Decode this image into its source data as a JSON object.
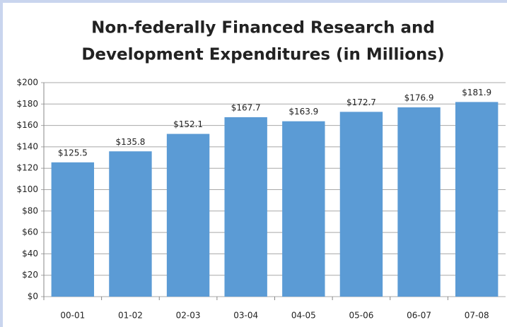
{
  "chart_data": {
    "type": "bar",
    "title": [
      "Non-federally Financed Research and",
      "Development Expenditures (in Millions)"
    ],
    "categories": [
      "00-01",
      "01-02",
      "02-03",
      "03-04",
      "04-05",
      "05-06",
      "06-07",
      "07-08"
    ],
    "values": [
      125.5,
      135.8,
      152.1,
      167.7,
      163.9,
      172.7,
      176.9,
      181.9
    ],
    "value_labels": [
      "$125.5",
      "$135.8",
      "$152.1",
      "$167.7",
      "$163.9",
      "$172.7",
      "$176.9",
      "$181.9"
    ],
    "color": "#5b9bd5",
    "ylim": [
      0,
      200
    ],
    "yticks": [
      {
        "value": 0,
        "label": "$0"
      },
      {
        "value": 20,
        "label": "$20"
      },
      {
        "value": 40,
        "label": "$40"
      },
      {
        "value": 60,
        "label": "$60"
      },
      {
        "value": 80,
        "label": "$80"
      },
      {
        "value": 100,
        "label": "$100"
      },
      {
        "value": 120,
        "label": "$120"
      },
      {
        "value": 140,
        "label": "$140"
      },
      {
        "value": 160,
        "label": "$160"
      },
      {
        "value": 180,
        "label": "$180"
      },
      {
        "value": 200,
        "label": "$200"
      }
    ],
    "grid": true
  }
}
